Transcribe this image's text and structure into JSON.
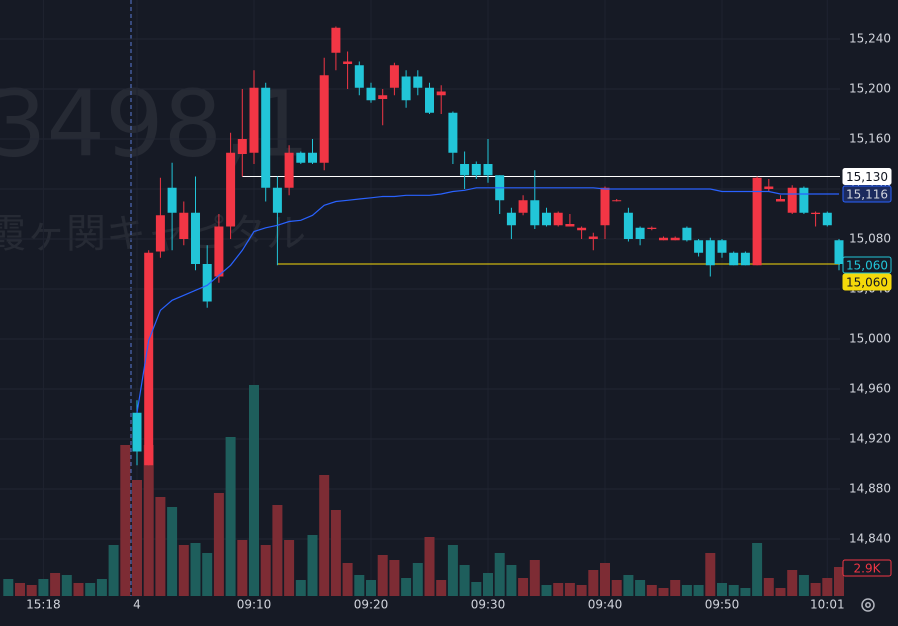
{
  "watermark": {
    "code": "3498,1",
    "name": "霞ヶ関キャピタル"
  },
  "chart_data": {
    "type": "candlestick",
    "categories": [
      null,
      null,
      null,
      "15:18",
      null,
      null,
      null,
      null,
      null,
      null,
      null,
      "4",
      null,
      null,
      null,
      null,
      null,
      null,
      null,
      null,
      null,
      "09:10",
      null,
      null,
      null,
      null,
      null,
      null,
      null,
      null,
      null,
      "09:20",
      null,
      null,
      null,
      null,
      null,
      null,
      null,
      null,
      null,
      "09:30",
      null,
      null,
      null,
      null,
      null,
      null,
      null,
      null,
      null,
      "09:40",
      null,
      null,
      null,
      null,
      null,
      null,
      null,
      null,
      null,
      "09:50",
      null,
      null,
      null,
      null,
      null,
      null,
      null,
      null,
      "10:01",
      null
    ],
    "open": [
      null,
      null,
      null,
      null,
      null,
      null,
      null,
      null,
      null,
      null,
      null,
      14941,
      14899,
      15070,
      15121,
      15080,
      15101,
      15060,
      15050,
      15090,
      15148,
      15149,
      15201,
      15121,
      15121,
      15149,
      15149,
      15141,
      15229,
      15220,
      15219,
      15201,
      15192,
      15201,
      15210,
      15210,
      15201,
      15195,
      15181,
      15140,
      15140,
      15140,
      15131,
      15101,
      15101,
      15111,
      15101,
      15091,
      15090,
      15087,
      15080,
      15091,
      15111,
      15101,
      15089,
      15088,
      15079,
      15079,
      15089,
      15079,
      15079,
      15079,
      15069,
      15069,
      15059,
      15120,
      15110,
      15101,
      15121,
      15100,
      15101,
      15079
    ],
    "high": [
      null,
      null,
      null,
      null,
      null,
      null,
      null,
      null,
      null,
      null,
      null,
      14951,
      15071,
      15129,
      15141,
      15110,
      15130,
      15075,
      15100,
      15165,
      15200,
      15215,
      15205,
      15130,
      15155,
      15150,
      15160,
      15225,
      15250,
      15230,
      15222,
      15205,
      15200,
      15221,
      15215,
      15215,
      15205,
      15203,
      15182,
      15150,
      15142,
      15160,
      15131,
      15105,
      15115,
      15135,
      15105,
      15102,
      15100,
      15090,
      15085,
      15122,
      15112,
      15105,
      15090,
      15090,
      15082,
      15082,
      15090,
      15080,
      15081,
      15080,
      15070,
      15070,
      15130,
      15128,
      15115,
      15123,
      15122,
      15102,
      15102,
      15080
    ],
    "low": [
      null,
      null,
      null,
      null,
      null,
      null,
      null,
      null,
      null,
      null,
      null,
      14899,
      14899,
      15065,
      15071,
      15075,
      15055,
      15025,
      15045,
      15080,
      15130,
      15140,
      15110,
      15059,
      15115,
      15140,
      15140,
      15135,
      15215,
      15200,
      15195,
      15189,
      15171,
      15195,
      15185,
      15195,
      15180,
      15180,
      15140,
      15120,
      15128,
      15125,
      15100,
      15080,
      15099,
      15088,
      15090,
      15090,
      15090,
      15080,
      15071,
      15080,
      15110,
      15078,
      15075,
      15087,
      15079,
      15079,
      15078,
      15066,
      15050,
      15065,
      15059,
      15059,
      15059,
      15118,
      15110,
      15100,
      15100,
      15090,
      15090,
      15055
    ],
    "close": [
      null,
      null,
      null,
      null,
      null,
      null,
      null,
      null,
      null,
      null,
      null,
      14910,
      15069,
      15099,
      15101,
      15101,
      15060,
      15030,
      15090,
      15149,
      15160,
      15201,
      15121,
      15101,
      15149,
      15141,
      15141,
      15211,
      15249,
      15222,
      15201,
      15191,
      15195,
      15219,
      15191,
      15201,
      15181,
      15198,
      15149,
      15131,
      15131,
      15131,
      15111,
      15091,
      15111,
      15091,
      15091,
      15101,
      15092,
      15089,
      15082,
      15121,
      15111,
      15080,
      15080,
      15089,
      15081,
      15081,
      15079,
      15069,
      15059,
      15069,
      15059,
      15059,
      15129,
      15122,
      15112,
      15121,
      15101,
      15101,
      15091,
      15060
    ],
    "close_label": "15,060",
    "up_color": "#f23645",
    "down_color": "#22c5d8",
    "volume": {
      "values": [
        1700,
        1300,
        1100,
        1700,
        2300,
        2100,
        1300,
        1300,
        1700,
        5100,
        15100,
        11600,
        15100,
        9900,
        8900,
        5100,
        5300,
        4300,
        10300,
        15900,
        5600,
        21100,
        5100,
        9100,
        5600,
        1600,
        6100,
        12100,
        8600,
        3300,
        2100,
        1600,
        4100,
        3600,
        1800,
        3300,
        5900,
        1600,
        5100,
        3100,
        1400,
        2300,
        4300,
        3100,
        1800,
        3600,
        1100,
        1300,
        1300,
        1100,
        2600,
        3300,
        1600,
        2100,
        1600,
        1100,
        800,
        1600,
        1100,
        1100,
        4300,
        1300,
        1100,
        800,
        5300,
        1800,
        800,
        2600,
        2100,
        1300,
        1800,
        2900
      ],
      "colors": [
        "#1e5e5c",
        "#7d2c34",
        "#7d2c34",
        "#1e5e5c",
        "#7d2c34",
        "#1e5e5c",
        "#7d2c34",
        "#1e5e5c",
        "#1e5e5c",
        "#1e5e5c",
        "#7d2c34",
        "#7d2c34",
        "#7d2c34",
        "#7d2c34",
        "#1e5e5c",
        "#7d2c34",
        "#1e5e5c",
        "#1e5e5c",
        "#7d2c34",
        "#1e5e5c",
        "#7d2c34",
        "#1e5e5c",
        "#7d2c34",
        "#7d2c34",
        "#7d2c34",
        "#1e5e5c",
        "#1e5e5c",
        "#7d2c34",
        "#7d2c34",
        "#7d2c34",
        "#1e5e5c",
        "#1e5e5c",
        "#7d2c34",
        "#7d2c34",
        "#1e5e5c",
        "#1e5e5c",
        "#7d2c34",
        "#7d2c34",
        "#1e5e5c",
        "#1e5e5c",
        "#1e5e5c",
        "#1e5e5c",
        "#1e5e5c",
        "#1e5e5c",
        "#7d2c34",
        "#7d2c34",
        "#1e5e5c",
        "#7d2c34",
        "#7d2c34",
        "#7d2c34",
        "#7d2c34",
        "#7d2c34",
        "#7d2c34",
        "#1e5e5c",
        "#1e5e5c",
        "#7d2c34",
        "#7d2c34",
        "#7d2c34",
        "#1e5e5c",
        "#1e5e5c",
        "#7d2c34",
        "#1e5e5c",
        "#1e5e5c",
        "#1e5e5c",
        "#1e5e5c",
        "#7d2c34",
        "#7d2c34",
        "#7d2c34",
        "#1e5e5c",
        "#7d2c34",
        "#7d2c34",
        "#7d2c34"
      ],
      "lim": [
        0,
        59600
      ],
      "last_label": "2.9K"
    },
    "ma": {
      "color": "#2962ff",
      "values": [
        null,
        null,
        null,
        null,
        null,
        null,
        null,
        null,
        null,
        null,
        null,
        14941,
        14999,
        15023,
        15031,
        15035,
        15039,
        15043,
        15051,
        15059,
        15071,
        15086,
        15089,
        15091,
        15094,
        15095,
        15099,
        15107,
        15110,
        15111,
        15112,
        15113,
        15114,
        15114,
        15115,
        15115,
        15115,
        15116,
        15118,
        15119,
        15121,
        15121,
        15121,
        15121,
        15121,
        15121,
        15121,
        15121,
        15121,
        15121,
        15121,
        15120,
        15120,
        15120,
        15120,
        15120,
        15120,
        15120,
        15120,
        15120,
        15120,
        15118,
        15118,
        15118,
        15118,
        15118,
        15116,
        15116,
        15116,
        15116,
        15116,
        15116
      ],
      "last_label": "15,116"
    },
    "levels": [
      {
        "value": 15130,
        "label": "15,130",
        "color": "#ffffff",
        "start": 20
      },
      {
        "value": 15060,
        "label": "15,060",
        "color": "#f5d90a",
        "start": 23
      }
    ],
    "ylim": [
      14794.4,
      15271.2
    ],
    "yticks": [
      {
        "value": 14840,
        "label": "14,840"
      },
      {
        "value": 14880,
        "label": "14,880"
      },
      {
        "value": 14920,
        "label": "14,920"
      },
      {
        "value": 14960,
        "label": "14,960"
      },
      {
        "value": 15000,
        "label": "15,000"
      },
      {
        "value": 15040,
        "label": "15,040"
      },
      {
        "value": 15080,
        "label": "15,080"
      },
      {
        "value": 15120,
        "label": "15,120"
      },
      {
        "value": 15160,
        "label": "15,160"
      },
      {
        "value": 15200,
        "label": "15,200"
      },
      {
        "value": 15240,
        "label": "15,240"
      }
    ],
    "grid": true
  }
}
